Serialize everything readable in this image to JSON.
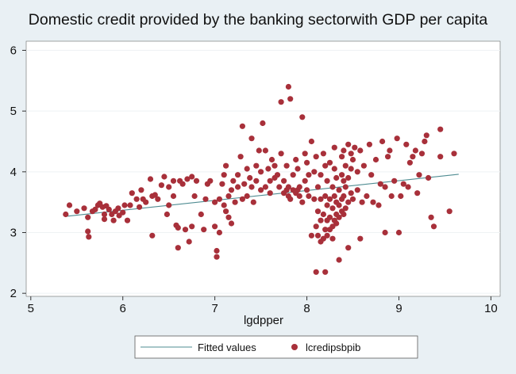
{
  "chart_data": {
    "type": "scatter",
    "title": "Domestic credit provided by the banking sectorwith GDP per capita",
    "xlabel": "lgdpper",
    "ylabel": "",
    "xlim": [
      4.95,
      10.1
    ],
    "ylim": [
      1.95,
      6.15
    ],
    "xticks": [
      5,
      6,
      7,
      8,
      9,
      10
    ],
    "yticks": [
      2,
      3,
      4,
      5,
      6
    ],
    "grid": "horizontal",
    "legend_position": "bottom",
    "colors": {
      "fitted": "#4f8c92",
      "points": "#a8303a",
      "plot_bg": "#ffffff",
      "page_bg": "#e9f0f4"
    },
    "series": [
      {
        "name": "Fitted values",
        "kind": "line",
        "x": [
          5.4,
          9.65
        ],
        "y": [
          3.27,
          3.96
        ]
      },
      {
        "name": "lcredipsbpib",
        "kind": "scatter",
        "points": [
          [
            5.38,
            3.3
          ],
          [
            5.42,
            3.45
          ],
          [
            5.5,
            3.35
          ],
          [
            5.58,
            3.4
          ],
          [
            5.62,
            3.25
          ],
          [
            5.62,
            3.02
          ],
          [
            5.63,
            2.93
          ],
          [
            5.67,
            3.35
          ],
          [
            5.7,
            3.38
          ],
          [
            5.73,
            3.45
          ],
          [
            5.75,
            3.48
          ],
          [
            5.78,
            3.42
          ],
          [
            5.8,
            3.3
          ],
          [
            5.8,
            3.22
          ],
          [
            5.82,
            3.44
          ],
          [
            5.85,
            3.38
          ],
          [
            5.88,
            3.3
          ],
          [
            5.9,
            3.2
          ],
          [
            5.92,
            3.35
          ],
          [
            5.95,
            3.4
          ],
          [
            5.96,
            3.28
          ],
          [
            6.0,
            3.33
          ],
          [
            6.02,
            3.45
          ],
          [
            6.05,
            3.2
          ],
          [
            6.08,
            3.45
          ],
          [
            6.1,
            3.65
          ],
          [
            6.15,
            3.55
          ],
          [
            6.18,
            3.42
          ],
          [
            6.2,
            3.7
          ],
          [
            6.22,
            3.55
          ],
          [
            6.25,
            3.5
          ],
          [
            6.3,
            3.88
          ],
          [
            6.32,
            3.6
          ],
          [
            6.32,
            2.95
          ],
          [
            6.35,
            3.62
          ],
          [
            6.38,
            3.55
          ],
          [
            6.42,
            3.78
          ],
          [
            6.45,
            3.92
          ],
          [
            6.48,
            3.3
          ],
          [
            6.5,
            3.75
          ],
          [
            6.5,
            3.45
          ],
          [
            6.55,
            3.85
          ],
          [
            6.55,
            3.6
          ],
          [
            6.58,
            3.12
          ],
          [
            6.6,
            3.08
          ],
          [
            6.6,
            2.75
          ],
          [
            6.62,
            3.85
          ],
          [
            6.65,
            3.8
          ],
          [
            6.68,
            3.05
          ],
          [
            6.7,
            3.88
          ],
          [
            6.72,
            2.85
          ],
          [
            6.75,
            3.92
          ],
          [
            6.75,
            3.1
          ],
          [
            6.78,
            3.6
          ],
          [
            6.8,
            3.85
          ],
          [
            6.85,
            3.3
          ],
          [
            6.88,
            3.05
          ],
          [
            6.9,
            3.55
          ],
          [
            6.92,
            3.8
          ],
          [
            6.95,
            3.85
          ],
          [
            7.0,
            3.5
          ],
          [
            7.0,
            3.1
          ],
          [
            7.02,
            2.7
          ],
          [
            7.02,
            2.6
          ],
          [
            7.05,
            3.0
          ],
          [
            7.05,
            3.55
          ],
          [
            7.08,
            3.8
          ],
          [
            7.1,
            3.95
          ],
          [
            7.1,
            3.45
          ],
          [
            7.12,
            4.1
          ],
          [
            7.12,
            3.35
          ],
          [
            7.15,
            3.6
          ],
          [
            7.15,
            3.25
          ],
          [
            7.18,
            3.7
          ],
          [
            7.18,
            3.15
          ],
          [
            7.2,
            3.85
          ],
          [
            7.22,
            3.5
          ],
          [
            7.25,
            3.75
          ],
          [
            7.25,
            3.95
          ],
          [
            7.28,
            4.25
          ],
          [
            7.3,
            3.55
          ],
          [
            7.3,
            4.75
          ],
          [
            7.32,
            3.8
          ],
          [
            7.35,
            3.6
          ],
          [
            7.35,
            4.05
          ],
          [
            7.38,
            3.9
          ],
          [
            7.4,
            4.55
          ],
          [
            7.4,
            3.75
          ],
          [
            7.42,
            3.5
          ],
          [
            7.45,
            4.1
          ],
          [
            7.45,
            3.85
          ],
          [
            7.48,
            4.35
          ],
          [
            7.5,
            4.0
          ],
          [
            7.5,
            3.7
          ],
          [
            7.52,
            4.8
          ],
          [
            7.55,
            3.75
          ],
          [
            7.55,
            4.35
          ],
          [
            7.58,
            4.05
          ],
          [
            7.6,
            3.85
          ],
          [
            7.6,
            3.65
          ],
          [
            7.62,
            4.2
          ],
          [
            7.65,
            3.9
          ],
          [
            7.65,
            4.1
          ],
          [
            7.68,
            3.95
          ],
          [
            7.7,
            3.75
          ],
          [
            7.72,
            4.3
          ],
          [
            7.72,
            5.15
          ],
          [
            7.75,
            3.65
          ],
          [
            7.75,
            3.85
          ],
          [
            7.78,
            3.7
          ],
          [
            7.78,
            4.1
          ],
          [
            7.8,
            3.6
          ],
          [
            7.8,
            5.4
          ],
          [
            7.8,
            3.75
          ],
          [
            7.82,
            5.2
          ],
          [
            7.82,
            3.55
          ],
          [
            7.85,
            3.7
          ],
          [
            7.85,
            3.95
          ],
          [
            7.88,
            4.2
          ],
          [
            7.88,
            3.65
          ],
          [
            7.9,
            3.7
          ],
          [
            7.9,
            4.05
          ],
          [
            7.92,
            3.75
          ],
          [
            7.92,
            3.6
          ],
          [
            7.95,
            4.9
          ],
          [
            7.95,
            3.5
          ],
          [
            7.98,
            3.85
          ],
          [
            7.98,
            4.3
          ],
          [
            8.0,
            3.7
          ],
          [
            8.0,
            4.15
          ],
          [
            8.02,
            3.6
          ],
          [
            8.02,
            3.95
          ],
          [
            8.05,
            2.95
          ],
          [
            8.05,
            4.5
          ],
          [
            8.08,
            3.55
          ],
          [
            8.08,
            4.0
          ],
          [
            8.1,
            2.35
          ],
          [
            8.1,
            3.1
          ],
          [
            8.1,
            4.25
          ],
          [
            8.12,
            2.95
          ],
          [
            8.12,
            3.35
          ],
          [
            8.12,
            3.75
          ],
          [
            8.15,
            2.85
          ],
          [
            8.15,
            3.2
          ],
          [
            8.15,
            3.55
          ],
          [
            8.15,
            3.95
          ],
          [
            8.18,
            2.9
          ],
          [
            8.18,
            3.3
          ],
          [
            8.18,
            4.3
          ],
          [
            8.2,
            2.35
          ],
          [
            8.2,
            3.05
          ],
          [
            8.2,
            3.6
          ],
          [
            8.2,
            4.1
          ],
          [
            8.22,
            2.95
          ],
          [
            8.22,
            3.2
          ],
          [
            8.22,
            3.45
          ],
          [
            8.22,
            3.85
          ],
          [
            8.25,
            3.05
          ],
          [
            8.25,
            3.25
          ],
          [
            8.25,
            3.55
          ],
          [
            8.25,
            4.15
          ],
          [
            8.28,
            2.9
          ],
          [
            8.28,
            3.1
          ],
          [
            8.28,
            3.4
          ],
          [
            8.28,
            3.75
          ],
          [
            8.3,
            3.2
          ],
          [
            8.3,
            3.6
          ],
          [
            8.3,
            4.05
          ],
          [
            8.3,
            4.4
          ],
          [
            8.32,
            3.15
          ],
          [
            8.32,
            3.3
          ],
          [
            8.32,
            3.5
          ],
          [
            8.32,
            3.9
          ],
          [
            8.35,
            3.25
          ],
          [
            8.35,
            3.45
          ],
          [
            8.35,
            3.7
          ],
          [
            8.35,
            2.55
          ],
          [
            8.38,
            3.35
          ],
          [
            8.38,
            3.55
          ],
          [
            8.38,
            3.95
          ],
          [
            8.38,
            4.25
          ],
          [
            8.4,
            3.3
          ],
          [
            8.4,
            3.6
          ],
          [
            8.4,
            3.85
          ],
          [
            8.4,
            4.35
          ],
          [
            8.42,
            3.4
          ],
          [
            8.42,
            3.75
          ],
          [
            8.42,
            4.1
          ],
          [
            8.45,
            2.75
          ],
          [
            8.45,
            3.5
          ],
          [
            8.45,
            3.9
          ],
          [
            8.45,
            4.45
          ],
          [
            8.48,
            3.65
          ],
          [
            8.48,
            4.05
          ],
          [
            8.48,
            4.3
          ],
          [
            8.5,
            3.55
          ],
          [
            8.5,
            4.2
          ],
          [
            8.52,
            4.4
          ],
          [
            8.55,
            3.7
          ],
          [
            8.55,
            4.0
          ],
          [
            8.58,
            2.9
          ],
          [
            8.58,
            4.35
          ],
          [
            8.6,
            3.5
          ],
          [
            8.62,
            4.1
          ],
          [
            8.65,
            3.6
          ],
          [
            8.68,
            4.45
          ],
          [
            8.7,
            3.95
          ],
          [
            8.72,
            3.5
          ],
          [
            8.75,
            4.2
          ],
          [
            8.78,
            3.45
          ],
          [
            8.8,
            3.8
          ],
          [
            8.82,
            4.5
          ],
          [
            8.85,
            3.75
          ],
          [
            8.85,
            3.0
          ],
          [
            8.88,
            4.25
          ],
          [
            8.9,
            4.35
          ],
          [
            8.92,
            3.6
          ],
          [
            8.95,
            3.85
          ],
          [
            8.98,
            4.55
          ],
          [
            9.0,
            3.0
          ],
          [
            9.02,
            3.6
          ],
          [
            9.05,
            3.8
          ],
          [
            9.08,
            4.45
          ],
          [
            9.1,
            3.75
          ],
          [
            9.12,
            4.15
          ],
          [
            9.15,
            4.25
          ],
          [
            9.18,
            4.35
          ],
          [
            9.2,
            3.65
          ],
          [
            9.22,
            3.95
          ],
          [
            9.25,
            4.3
          ],
          [
            9.28,
            4.5
          ],
          [
            9.3,
            4.6
          ],
          [
            9.32,
            3.9
          ],
          [
            9.35,
            3.25
          ],
          [
            9.38,
            3.1
          ],
          [
            9.45,
            4.7
          ],
          [
            9.45,
            4.25
          ],
          [
            9.55,
            3.35
          ],
          [
            9.6,
            4.3
          ]
        ]
      }
    ]
  }
}
